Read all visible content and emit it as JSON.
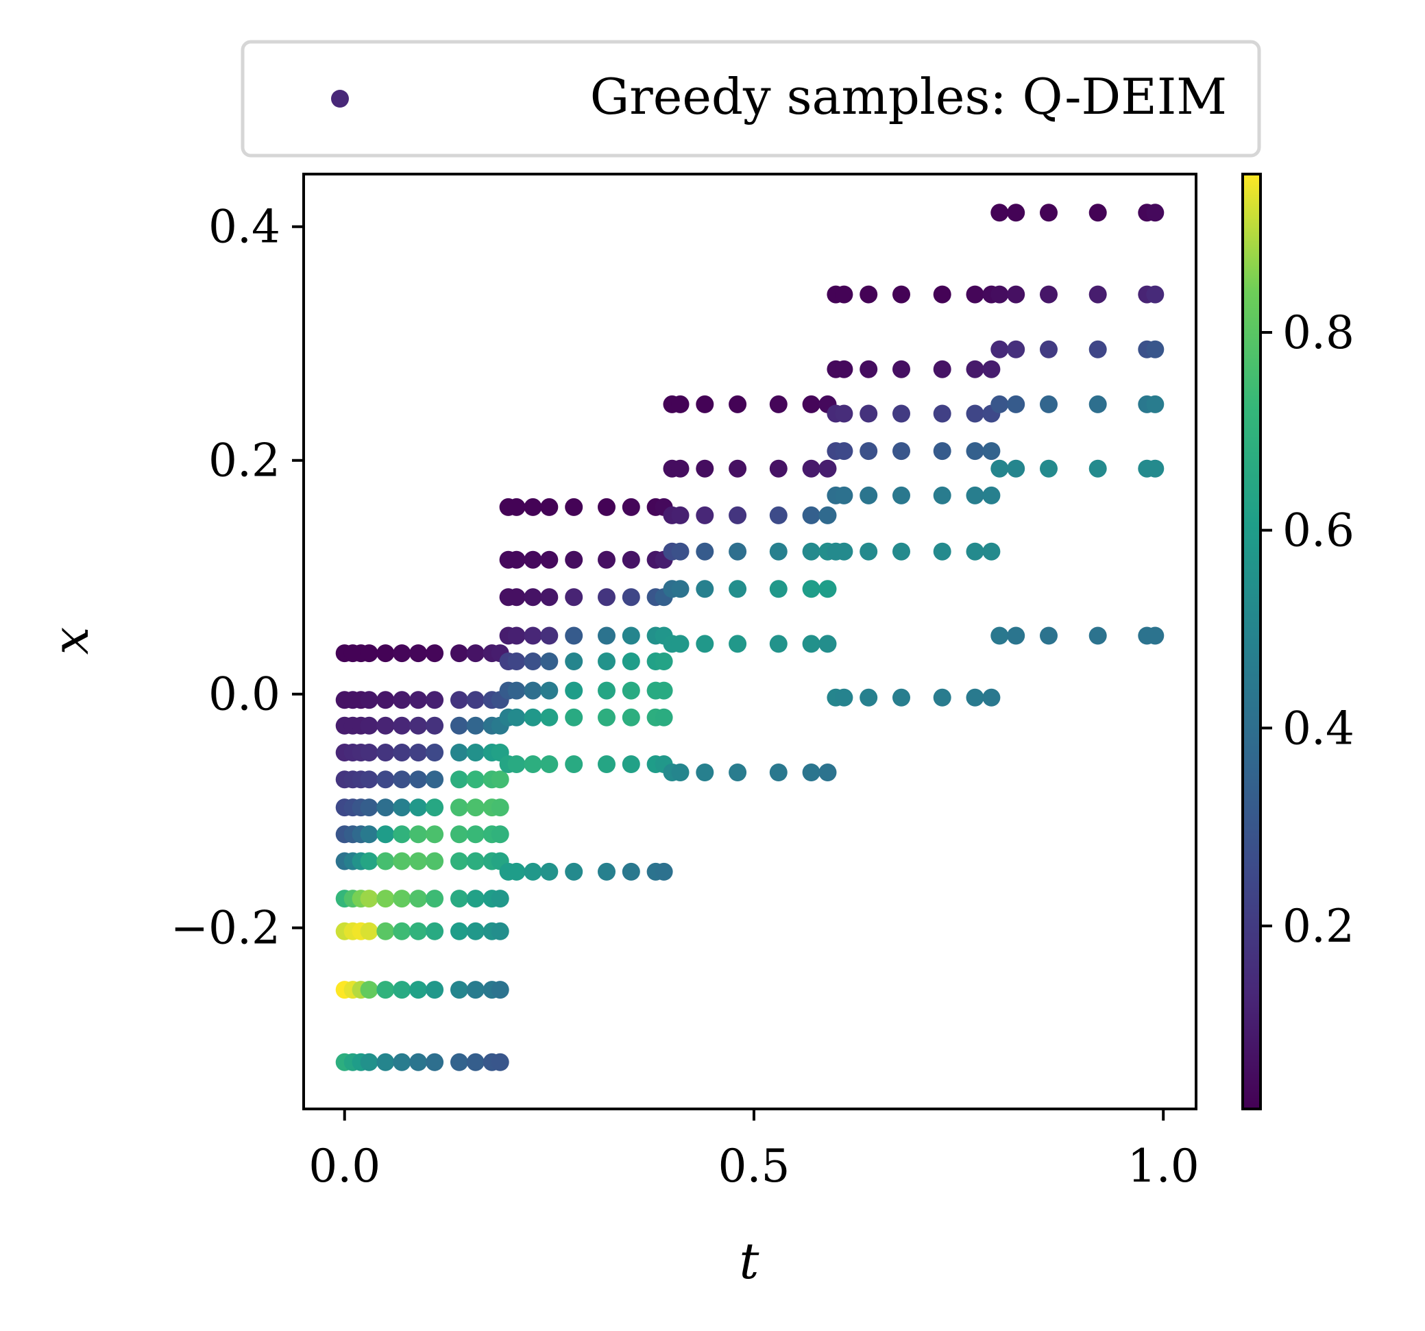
{
  "chart_data": {
    "type": "scatter",
    "title": "",
    "xlabel": "t",
    "ylabel": "x",
    "xlim": [
      -0.05,
      1.04
    ],
    "ylim": [
      -0.355,
      0.445
    ],
    "xticks": [
      0.0,
      0.5,
      1.0
    ],
    "xtick_labels": [
      "0.0",
      "0.5",
      "1.0"
    ],
    "yticks": [
      -0.2,
      0.0,
      0.2,
      0.4
    ],
    "ytick_labels": [
      "−0.2",
      "0.0",
      "0.2",
      "0.4"
    ],
    "grid": false,
    "legend": {
      "position": "top-center",
      "entries": [
        "Greedy samples: Q-DEIM"
      ]
    },
    "colormap": "viridis",
    "colorbar": {
      "range": [
        0.015,
        0.96
      ],
      "ticks": [
        0.2,
        0.4,
        0.6,
        0.8
      ],
      "tick_labels": [
        "0.2",
        "0.4",
        "0.6",
        "0.8"
      ]
    },
    "legend_marker_color": "#482878",
    "series": [
      {
        "name": "Greedy samples: Q-DEIM",
        "groups": [
          {
            "t": [
              0.0,
              0.01,
              0.02,
              0.03,
              0.05,
              0.07,
              0.09,
              0.11,
              0.14,
              0.16,
              0.18,
              0.19
            ],
            "rows": [
              {
                "x": 0.035,
                "c": [
                  0.02,
                  0.02,
                  0.02,
                  0.02,
                  0.02,
                  0.03,
                  0.03,
                  0.03,
                  0.05,
                  0.07,
                  0.09,
                  0.1
                ]
              },
              {
                "x": -0.005,
                "c": [
                  0.07,
                  0.07,
                  0.07,
                  0.08,
                  0.08,
                  0.09,
                  0.1,
                  0.11,
                  0.18,
                  0.21,
                  0.25,
                  0.28
                ]
              },
              {
                "x": -0.027,
                "c": [
                  0.1,
                  0.1,
                  0.1,
                  0.11,
                  0.12,
                  0.13,
                  0.15,
                  0.17,
                  0.32,
                  0.36,
                  0.42,
                  0.45
                ]
              },
              {
                "x": -0.05,
                "c": [
                  0.13,
                  0.14,
                  0.15,
                  0.16,
                  0.18,
                  0.2,
                  0.22,
                  0.25,
                  0.5,
                  0.55,
                  0.6,
                  0.62
                ]
              },
              {
                "x": -0.073,
                "c": [
                  0.18,
                  0.19,
                  0.2,
                  0.22,
                  0.25,
                  0.28,
                  0.32,
                  0.36,
                  0.68,
                  0.72,
                  0.74,
                  0.75
                ]
              },
              {
                "x": -0.097,
                "c": [
                  0.25,
                  0.27,
                  0.3,
                  0.33,
                  0.4,
                  0.48,
                  0.58,
                  0.65,
                  0.76,
                  0.77,
                  0.77,
                  0.76
                ]
              },
              {
                "x": -0.12,
                "c": [
                  0.3,
                  0.33,
                  0.38,
                  0.45,
                  0.6,
                  0.7,
                  0.76,
                  0.77,
                  0.74,
                  0.73,
                  0.72,
                  0.7
                ]
              },
              {
                "x": -0.143,
                "c": [
                  0.42,
                  0.48,
                  0.56,
                  0.64,
                  0.76,
                  0.79,
                  0.79,
                  0.78,
                  0.7,
                  0.68,
                  0.66,
                  0.64
                ]
              },
              {
                "x": -0.175,
                "c": [
                  0.72,
                  0.78,
                  0.85,
                  0.88,
                  0.85,
                  0.82,
                  0.78,
                  0.74,
                  0.66,
                  0.62,
                  0.6,
                  0.58
                ]
              },
              {
                "x": -0.203,
                "c": [
                  0.92,
                  0.94,
                  0.95,
                  0.93,
                  0.8,
                  0.74,
                  0.7,
                  0.66,
                  0.6,
                  0.58,
                  0.56,
                  0.54
                ]
              },
              {
                "x": -0.253,
                "c": [
                  0.96,
                  0.94,
                  0.9,
                  0.82,
                  0.7,
                  0.66,
                  0.62,
                  0.58,
                  0.5,
                  0.46,
                  0.44,
                  0.42
                ]
              },
              {
                "x": -0.315,
                "c": [
                  0.68,
                  0.64,
                  0.6,
                  0.55,
                  0.5,
                  0.46,
                  0.43,
                  0.4,
                  0.35,
                  0.33,
                  0.31,
                  0.3
                ]
              }
            ]
          },
          {
            "t": [
              0.2,
              0.21,
              0.23,
              0.25,
              0.28,
              0.32,
              0.35,
              0.38,
              0.39
            ],
            "rows": [
              {
                "x": 0.16,
                "c": [
                  0.02,
                  0.02,
                  0.02,
                  0.02,
                  0.02,
                  0.02,
                  0.03,
                  0.03,
                  0.04
                ]
              },
              {
                "x": 0.115,
                "c": [
                  0.04,
                  0.04,
                  0.04,
                  0.04,
                  0.05,
                  0.06,
                  0.07,
                  0.08,
                  0.1
                ]
              },
              {
                "x": 0.083,
                "c": [
                  0.06,
                  0.06,
                  0.07,
                  0.08,
                  0.12,
                  0.18,
                  0.24,
                  0.3,
                  0.34
                ]
              },
              {
                "x": 0.05,
                "c": [
                  0.1,
                  0.11,
                  0.13,
                  0.16,
                  0.32,
                  0.42,
                  0.5,
                  0.55,
                  0.57
                ]
              },
              {
                "x": 0.028,
                "c": [
                  0.22,
                  0.24,
                  0.28,
                  0.34,
                  0.5,
                  0.56,
                  0.6,
                  0.62,
                  0.63
                ]
              },
              {
                "x": 0.003,
                "c": [
                  0.32,
                  0.35,
                  0.4,
                  0.46,
                  0.6,
                  0.64,
                  0.66,
                  0.66,
                  0.66
                ]
              },
              {
                "x": -0.02,
                "c": [
                  0.48,
                  0.52,
                  0.58,
                  0.62,
                  0.66,
                  0.68,
                  0.68,
                  0.68,
                  0.67
                ]
              },
              {
                "x": -0.06,
                "c": [
                  0.64,
                  0.66,
                  0.68,
                  0.68,
                  0.66,
                  0.64,
                  0.62,
                  0.6,
                  0.58
                ]
              },
              {
                "x": -0.152,
                "c": [
                  0.6,
                  0.6,
                  0.58,
                  0.56,
                  0.52,
                  0.48,
                  0.44,
                  0.42,
                  0.41
                ]
              }
            ]
          },
          {
            "t": [
              0.4,
              0.41,
              0.44,
              0.48,
              0.53,
              0.57,
              0.59
            ],
            "rows": [
              {
                "x": 0.248,
                "c": [
                  0.02,
                  0.02,
                  0.02,
                  0.02,
                  0.03,
                  0.03,
                  0.04
                ]
              },
              {
                "x": 0.193,
                "c": [
                  0.05,
                  0.05,
                  0.05,
                  0.06,
                  0.07,
                  0.09,
                  0.1
                ]
              },
              {
                "x": 0.153,
                "c": [
                  0.1,
                  0.11,
                  0.13,
                  0.18,
                  0.26,
                  0.34,
                  0.38
                ]
              },
              {
                "x": 0.122,
                "c": [
                  0.26,
                  0.28,
                  0.32,
                  0.4,
                  0.48,
                  0.52,
                  0.54
                ]
              },
              {
                "x": 0.09,
                "c": [
                  0.4,
                  0.42,
                  0.48,
                  0.54,
                  0.58,
                  0.6,
                  0.6
                ]
              },
              {
                "x": 0.043,
                "c": [
                  0.58,
                  0.58,
                  0.58,
                  0.58,
                  0.56,
                  0.55,
                  0.54
                ]
              },
              {
                "x": -0.067,
                "c": [
                  0.52,
                  0.5,
                  0.48,
                  0.46,
                  0.44,
                  0.43,
                  0.42
                ]
              }
            ]
          },
          {
            "t": [
              0.6,
              0.61,
              0.64,
              0.68,
              0.73,
              0.77,
              0.79
            ],
            "rows": [
              {
                "x": 0.342,
                "c": [
                  0.02,
                  0.02,
                  0.02,
                  0.02,
                  0.02,
                  0.03,
                  0.04
                ]
              },
              {
                "x": 0.278,
                "c": [
                  0.04,
                  0.04,
                  0.05,
                  0.06,
                  0.07,
                  0.09,
                  0.1
                ]
              },
              {
                "x": 0.24,
                "c": [
                  0.14,
                  0.15,
                  0.17,
                  0.2,
                  0.22,
                  0.24,
                  0.25
                ]
              },
              {
                "x": 0.208,
                "c": [
                  0.24,
                  0.25,
                  0.28,
                  0.3,
                  0.32,
                  0.34,
                  0.35
                ]
              },
              {
                "x": 0.17,
                "c": [
                  0.4,
                  0.41,
                  0.43,
                  0.44,
                  0.46,
                  0.47,
                  0.48
                ]
              },
              {
                "x": 0.122,
                "c": [
                  0.52,
                  0.52,
                  0.52,
                  0.52,
                  0.52,
                  0.52,
                  0.52
                ]
              },
              {
                "x": -0.003,
                "c": [
                  0.5,
                  0.49,
                  0.48,
                  0.47,
                  0.46,
                  0.45,
                  0.44
                ]
              }
            ]
          },
          {
            "t": [
              0.8,
              0.82,
              0.86,
              0.92,
              0.98,
              0.99
            ],
            "rows": [
              {
                "x": 0.412,
                "c": [
                  0.02,
                  0.02,
                  0.02,
                  0.02,
                  0.03,
                  0.04
                ]
              },
              {
                "x": 0.342,
                "c": [
                  0.05,
                  0.06,
                  0.08,
                  0.1,
                  0.12,
                  0.14
                ]
              },
              {
                "x": 0.295,
                "c": [
                  0.14,
                  0.16,
                  0.2,
                  0.24,
                  0.28,
                  0.3
                ]
              },
              {
                "x": 0.248,
                "c": [
                  0.3,
                  0.32,
                  0.36,
                  0.4,
                  0.44,
                  0.46
                ]
              },
              {
                "x": 0.193,
                "c": [
                  0.5,
                  0.5,
                  0.52,
                  0.52,
                  0.52,
                  0.52
                ]
              },
              {
                "x": 0.05,
                "c": [
                  0.44,
                  0.43,
                  0.42,
                  0.42,
                  0.42,
                  0.42
                ]
              }
            ]
          }
        ]
      }
    ]
  }
}
